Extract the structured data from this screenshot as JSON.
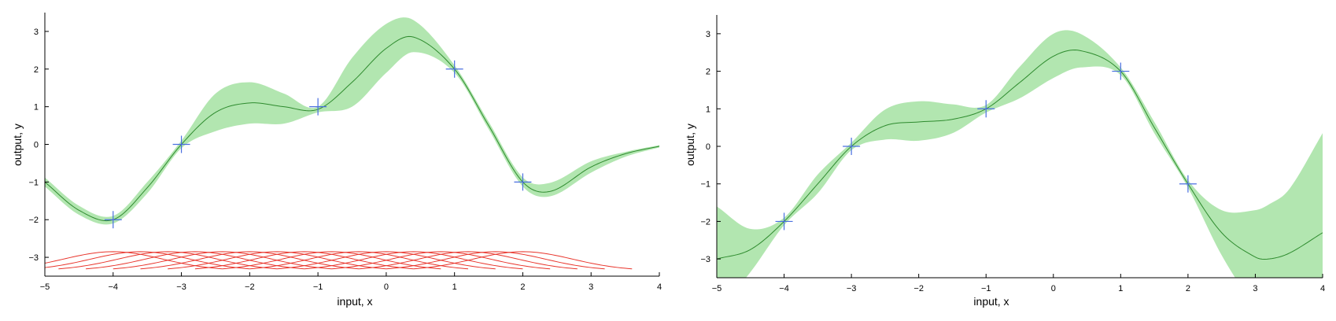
{
  "colors": {
    "band": "#b2e6b0",
    "mean": "#2e8b2e",
    "marker": "#4a6fe0",
    "basis": "#e8342b",
    "axis": "#000000"
  },
  "chart_data": [
    {
      "type": "line",
      "xlabel": "input, x",
      "ylabel": "output, y",
      "xlim": [
        -5,
        4
      ],
      "ylim": [
        -3.5,
        3.5
      ],
      "xticks": [
        "−5",
        "−4",
        "−3",
        "−2",
        "−1",
        "0",
        "1",
        "2",
        "3",
        "4"
      ],
      "yticks": [
        "−3",
        "−2",
        "−1",
        "0",
        "1",
        "2",
        "3"
      ],
      "grid": false,
      "legend": "none",
      "observations": {
        "marker": "plus",
        "x": [
          -4,
          -3,
          -1,
          1,
          2
        ],
        "y": [
          -2,
          0,
          1,
          2,
          -1
        ]
      },
      "mean": {
        "x": [
          -5,
          -4.5,
          -4,
          -3.5,
          -3,
          -2.5,
          -2,
          -1.5,
          -1,
          -0.5,
          0,
          0.4,
          1,
          1.5,
          2,
          2.4,
          3,
          3.5,
          4
        ],
        "y": [
          -1.0,
          -1.75,
          -2.0,
          -1.15,
          0.0,
          0.85,
          1.1,
          1.0,
          0.93,
          1.65,
          2.55,
          2.85,
          2.0,
          0.5,
          -1.0,
          -1.25,
          -0.6,
          -0.25,
          -0.05
        ]
      },
      "band": {
        "x": [
          -5,
          -4.5,
          -4,
          -3.5,
          -3,
          -2.5,
          -2,
          -1.5,
          -1,
          -0.5,
          0,
          0.4,
          1,
          1.5,
          2,
          2.4,
          3,
          3.5,
          4
        ],
        "upper": [
          -0.88,
          -1.63,
          -1.9,
          -1.0,
          0.1,
          1.35,
          1.65,
          1.35,
          1.0,
          2.3,
          3.2,
          3.3,
          2.1,
          0.6,
          -0.88,
          -1.02,
          -0.45,
          -0.2,
          -0.02
        ],
        "lower": [
          -1.12,
          -1.87,
          -2.1,
          -1.3,
          -0.1,
          0.35,
          0.55,
          0.55,
          0.85,
          1.0,
          1.9,
          2.45,
          1.9,
          0.4,
          -1.12,
          -1.38,
          -0.75,
          -0.33,
          -0.08
        ]
      },
      "basis_functions": {
        "centers": [
          -4,
          -3.6,
          -3.2,
          -2.8,
          -2.4,
          -2,
          -1.6,
          -1.2,
          -0.8,
          -0.4,
          0,
          0.4,
          0.8,
          1.2,
          1.6,
          2
        ],
        "width": 1.6,
        "baseline": -3.35,
        "amplitude": 0.5
      }
    },
    {
      "type": "line",
      "xlabel": "input, x",
      "ylabel": "output, y",
      "xlim": [
        -5,
        4
      ],
      "ylim": [
        -3.5,
        3.5
      ],
      "xticks": [
        "−5",
        "−4",
        "−3",
        "−2",
        "−1",
        "0",
        "1",
        "2",
        "3",
        "4"
      ],
      "yticks": [
        "−3",
        "−2",
        "−1",
        "0",
        "1",
        "2",
        "3"
      ],
      "grid": false,
      "legend": "none",
      "observations": {
        "marker": "plus",
        "x": [
          -4,
          -3,
          -1,
          1,
          2
        ],
        "y": [
          -2,
          0,
          1,
          2,
          -1
        ]
      },
      "mean": {
        "x": [
          -5,
          -4.5,
          -4,
          -3.5,
          -3,
          -2.5,
          -2,
          -1.5,
          -1,
          -0.5,
          0,
          0.4,
          1,
          1.5,
          2,
          2.5,
          3,
          3.2,
          3.5,
          4
        ],
        "y": [
          -3.0,
          -2.75,
          -2.0,
          -1.0,
          0.0,
          0.55,
          0.65,
          0.72,
          1.0,
          1.7,
          2.4,
          2.55,
          2.0,
          0.5,
          -1.0,
          -2.3,
          -2.95,
          -3.0,
          -2.85,
          -2.3
        ]
      },
      "band": {
        "x": [
          -5,
          -4.5,
          -4,
          -3.5,
          -3,
          -2.5,
          -2,
          -1.5,
          -1,
          -0.5,
          0,
          0.4,
          1,
          1.5,
          2,
          2.5,
          3,
          3.2,
          3.5,
          4
        ],
        "upper": [
          -1.6,
          -2.2,
          -1.9,
          -0.75,
          0.1,
          0.98,
          1.2,
          1.12,
          1.1,
          2.12,
          3.0,
          3.0,
          2.1,
          0.65,
          -0.9,
          -1.7,
          -1.7,
          -1.55,
          -1.15,
          0.35
        ],
        "lower": [
          -4.4,
          -3.35,
          -2.1,
          -1.25,
          -0.1,
          0.18,
          0.15,
          0.35,
          0.9,
          1.28,
          1.82,
          2.1,
          1.9,
          0.35,
          -1.1,
          -2.9,
          -4.25,
          -4.4,
          -4.55,
          -4.95
        ]
      }
    }
  ]
}
